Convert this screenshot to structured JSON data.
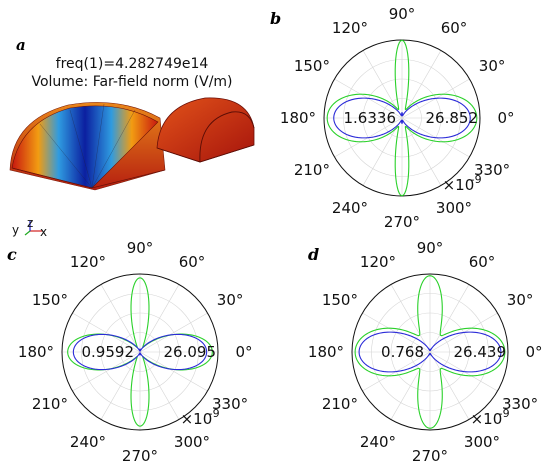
{
  "panel_a": {
    "letter": "a",
    "freq_label": "freq(1)=4.282749e14",
    "volume_label": "Volume: Far-field norm (V/m)",
    "axis_triad": {
      "y": "y",
      "z": "z",
      "x": "x"
    }
  },
  "colors": {
    "green_series": "#2ad12a",
    "blue_series": "#2b2bd8",
    "circle": "#111111",
    "grid": "#d6d6d6",
    "red_shape": "#d63a12"
  },
  "chart_data": [
    {
      "panel": "b",
      "type": "polar",
      "angle_ticks": [
        "0°",
        "30°",
        "60°",
        "90°",
        "120°",
        "150°",
        "180°",
        "210°",
        "240°",
        "270°",
        "300°",
        "330°"
      ],
      "radial_labels": [
        "1.6336",
        "26.852"
      ],
      "scale_label": "×10",
      "scale_exponent": "-9",
      "r_max": 28,
      "series": [
        {
          "color": "green",
          "shape": "four-lobe",
          "side_r": 26.85,
          "vertical_r": 27.0,
          "side_width": 0.55,
          "vertical_width": 0.14
        },
        {
          "color": "blue",
          "shape": "two-lobe",
          "side_r": 24.5,
          "vertical_r": 1.6,
          "side_width": 0.5,
          "vertical_width": 0.1
        }
      ]
    },
    {
      "panel": "c",
      "type": "polar",
      "angle_ticks": [
        "0°",
        "30°",
        "60°",
        "90°",
        "120°",
        "150°",
        "180°",
        "210°",
        "240°",
        "270°",
        "300°",
        "330°"
      ],
      "radial_labels": [
        "0.9592",
        "26.095"
      ],
      "scale_label": "×10",
      "scale_exponent": "-9",
      "r_max": 27.5,
      "series": [
        {
          "color": "green",
          "shape": "four-lobe",
          "side_r": 25.5,
          "vertical_r": 26.1,
          "side_width": 0.42,
          "vertical_width": 0.2
        },
        {
          "color": "blue",
          "shape": "two-lobe",
          "side_r": 23.5,
          "vertical_r": 0.96,
          "side_width": 0.45,
          "vertical_width": 0.1
        }
      ]
    },
    {
      "panel": "d",
      "type": "polar",
      "angle_ticks": [
        "0°",
        "30°",
        "60°",
        "90°",
        "120°",
        "150°",
        "180°",
        "210°",
        "240°",
        "270°",
        "300°",
        "330°"
      ],
      "radial_labels": [
        "0.768",
        "26.439"
      ],
      "scale_label": "×10",
      "scale_exponent": "-9",
      "r_max": 27.5,
      "series": [
        {
          "color": "green",
          "shape": "four-lobe",
          "side_r": 26.4,
          "vertical_r": 26.0,
          "side_width": 0.55,
          "vertical_width": 0.25
        },
        {
          "color": "blue",
          "shape": "two-lobe",
          "side_r": 25.0,
          "vertical_r": 0.77,
          "side_width": 0.48,
          "vertical_width": 0.1
        }
      ]
    }
  ]
}
